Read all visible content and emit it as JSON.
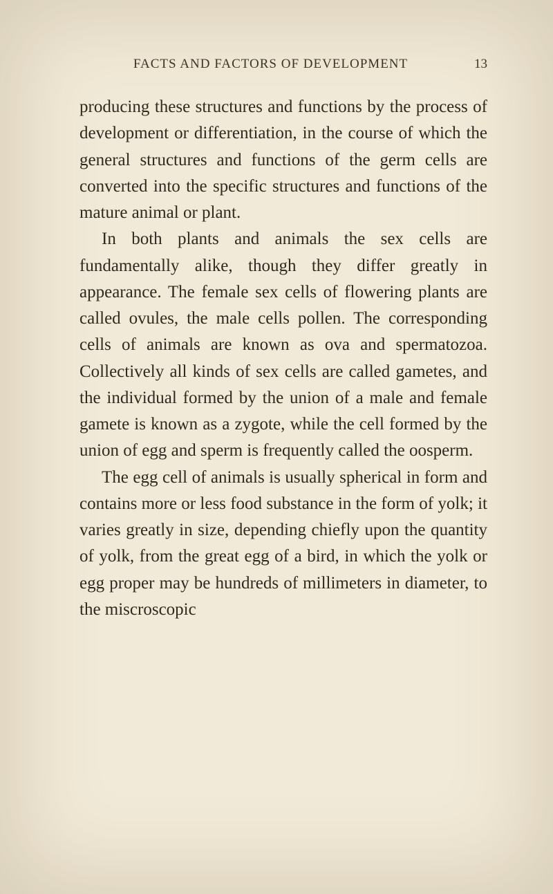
{
  "header": {
    "title": "FACTS AND FACTORS OF DEVELOPMENT",
    "page_number": "13"
  },
  "paragraphs": {
    "p1": "producing these structures and functions by the process of development or differentiation, in the course of which the general structures and functions of the germ cells are converted into the specific structures and functions of the mature animal or plant.",
    "p2": "In both plants and animals the sex cells are fundamentally alike, though they differ greatly in appearance. The female sex cells of flowering plants are called ovules, the male cells pollen. The corresponding cells of animals are known as ova and spermatozoa. Collectively all kinds of sex cells are called gametes, and the individual formed by the union of a male and female gamete is known as a zygote, while the cell formed by the union of egg and sperm is frequently called the oosperm.",
    "p3": "The egg cell of animals is usually spherical in form and contains more or less food substance in the form of yolk; it varies greatly in size, depending chiefly upon the quantity of yolk, from the great egg of a bird, in which the yolk or egg proper may be hundreds of millimeters in diameter, to the miscroscopic"
  },
  "colors": {
    "background": "#f2ead8",
    "text": "#2e2a1f",
    "header_text": "#3a3528"
  },
  "typography": {
    "header_fontsize": 19,
    "body_fontsize": 25,
    "body_lineheight": 1.53,
    "font_family": "Georgia, Times New Roman, serif"
  }
}
